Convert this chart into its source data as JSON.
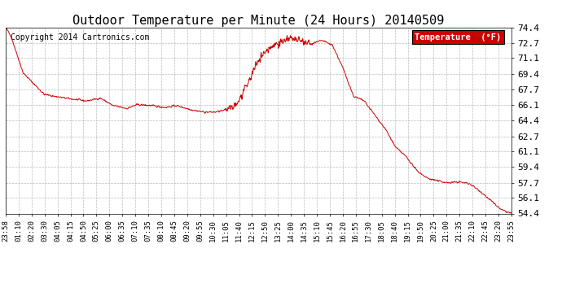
{
  "title": "Outdoor Temperature per Minute (24 Hours) 20140509",
  "copyright": "Copyright 2014 Cartronics.com",
  "legend_label": "Temperature  (°F)",
  "legend_bg": "#cc0000",
  "legend_text_color": "#ffffff",
  "line_color": "#cc0000",
  "bg_color": "#ffffff",
  "plot_bg_color": "#ffffff",
  "grid_color": "#bbbbbb",
  "yticks": [
    54.4,
    56.1,
    57.7,
    59.4,
    61.1,
    62.7,
    64.4,
    66.1,
    67.7,
    69.4,
    71.1,
    72.7,
    74.4
  ],
  "ylim": [
    54.4,
    74.4
  ],
  "xtick_labels": [
    "23:58",
    "01:10",
    "02:20",
    "03:30",
    "04:05",
    "04:15",
    "04:50",
    "05:25",
    "06:00",
    "06:35",
    "07:10",
    "07:35",
    "08:10",
    "08:45",
    "09:20",
    "09:55",
    "10:30",
    "11:05",
    "11:40",
    "12:15",
    "12:50",
    "13:25",
    "14:00",
    "14:35",
    "15:10",
    "15:45",
    "16:20",
    "16:55",
    "17:30",
    "18:05",
    "18:40",
    "19:15",
    "19:50",
    "20:25",
    "21:00",
    "21:35",
    "22:10",
    "22:45",
    "23:20",
    "23:55"
  ],
  "title_fontsize": 11,
  "copyright_fontsize": 7,
  "tick_label_fontsize": 6.5,
  "ytick_label_fontsize": 8,
  "keypoints_x": [
    0,
    15,
    50,
    110,
    170,
    230,
    270,
    305,
    345,
    375,
    415,
    455,
    485,
    535,
    565,
    595,
    625,
    655,
    685,
    720,
    750,
    780,
    810,
    840,
    870,
    900,
    930,
    960,
    990,
    1020,
    1050,
    1080,
    1110,
    1140,
    1170,
    1200,
    1230,
    1260,
    1290,
    1320,
    1350,
    1380,
    1410,
    1439
  ],
  "keypoints_y": [
    74.4,
    73.5,
    69.5,
    67.2,
    66.8,
    66.5,
    66.8,
    66.0,
    65.7,
    66.1,
    66.0,
    65.8,
    66.0,
    65.5,
    65.3,
    65.3,
    65.5,
    66.0,
    68.0,
    71.0,
    72.2,
    72.8,
    73.2,
    72.9,
    72.6,
    73.0,
    72.5,
    70.0,
    67.0,
    66.5,
    65.0,
    63.5,
    61.5,
    60.5,
    59.0,
    58.2,
    57.9,
    57.7,
    57.8,
    57.6,
    56.8,
    55.8,
    54.8,
    54.4
  ]
}
